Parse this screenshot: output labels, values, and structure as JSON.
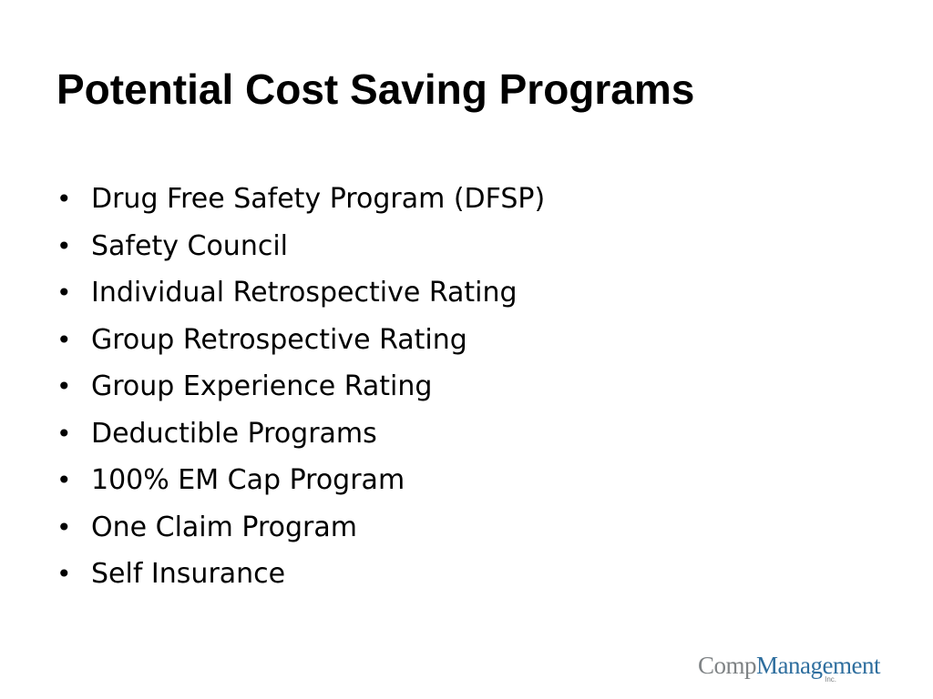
{
  "slide": {
    "title": "Potential Cost Saving Programs",
    "bullet_glyph": "•",
    "bullets": [
      "Drug Free Safety Program (DFSP)",
      "Safety Council",
      "Individual Retrospective Rating",
      "Group Retrospective Rating",
      "Group Experience Rating",
      "Deductible Programs",
      "100% EM Cap Program",
      "One Claim Program",
      "Self Insurance"
    ]
  },
  "logo": {
    "part1": "Comp",
    "part2": "Management",
    "suffix": "Inc.",
    "colors": {
      "comp": "#7f8385",
      "management": "#2e6e9e"
    }
  },
  "colors": {
    "background": "#ffffff",
    "text": "#000000"
  }
}
